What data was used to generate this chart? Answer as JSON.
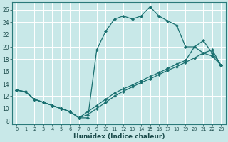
{
  "xlabel": "Humidex (Indice chaleur)",
  "bg_color": "#c8e8e8",
  "grid_color": "#ffffff",
  "line_color": "#1a7070",
  "xlim": [
    -0.5,
    23.5
  ],
  "ylim": [
    7.5,
    27.2
  ],
  "xticks": [
    0,
    1,
    2,
    3,
    4,
    5,
    6,
    7,
    8,
    9,
    10,
    11,
    12,
    13,
    14,
    15,
    16,
    17,
    18,
    19,
    20,
    21,
    22,
    23
  ],
  "yticks": [
    8,
    10,
    12,
    14,
    16,
    18,
    20,
    22,
    24,
    26
  ],
  "line1_x": [
    0,
    1,
    2,
    3,
    4,
    5,
    6,
    7,
    8,
    9,
    10,
    11,
    12,
    13,
    14,
    15,
    16,
    17,
    18,
    19,
    20,
    21,
    22,
    23
  ],
  "line1_y": [
    13,
    12.7,
    11.5,
    11,
    10.5,
    10,
    9.5,
    8.5,
    8.5,
    19.5,
    22.5,
    24.5,
    25,
    24.5,
    25,
    26.5,
    25,
    24.2,
    23.5,
    20,
    20,
    19,
    18.5,
    17
  ],
  "line2_x": [
    0,
    1,
    2,
    3,
    4,
    5,
    6,
    7,
    8,
    9,
    10,
    11,
    12,
    13,
    14,
    15,
    16,
    17,
    18,
    19,
    20,
    21,
    22,
    23
  ],
  "line2_y": [
    13,
    12.7,
    11.5,
    11,
    10.5,
    10,
    9.5,
    8.5,
    9.5,
    10.5,
    11.5,
    12.5,
    13.2,
    13.8,
    14.5,
    15.2,
    15.8,
    16.5,
    17.2,
    17.8,
    20,
    21,
    19,
    17
  ],
  "line3_x": [
    0,
    1,
    2,
    3,
    4,
    5,
    6,
    7,
    8,
    9,
    10,
    11,
    12,
    13,
    14,
    15,
    16,
    17,
    18,
    19,
    20,
    21,
    22,
    23
  ],
  "line3_y": [
    13,
    12.7,
    11.5,
    11,
    10.5,
    10,
    9.5,
    8.5,
    9.0,
    10.0,
    11.0,
    12.0,
    12.8,
    13.5,
    14.2,
    14.8,
    15.5,
    16.2,
    16.8,
    17.5,
    18.2,
    19.0,
    19.5,
    17
  ]
}
